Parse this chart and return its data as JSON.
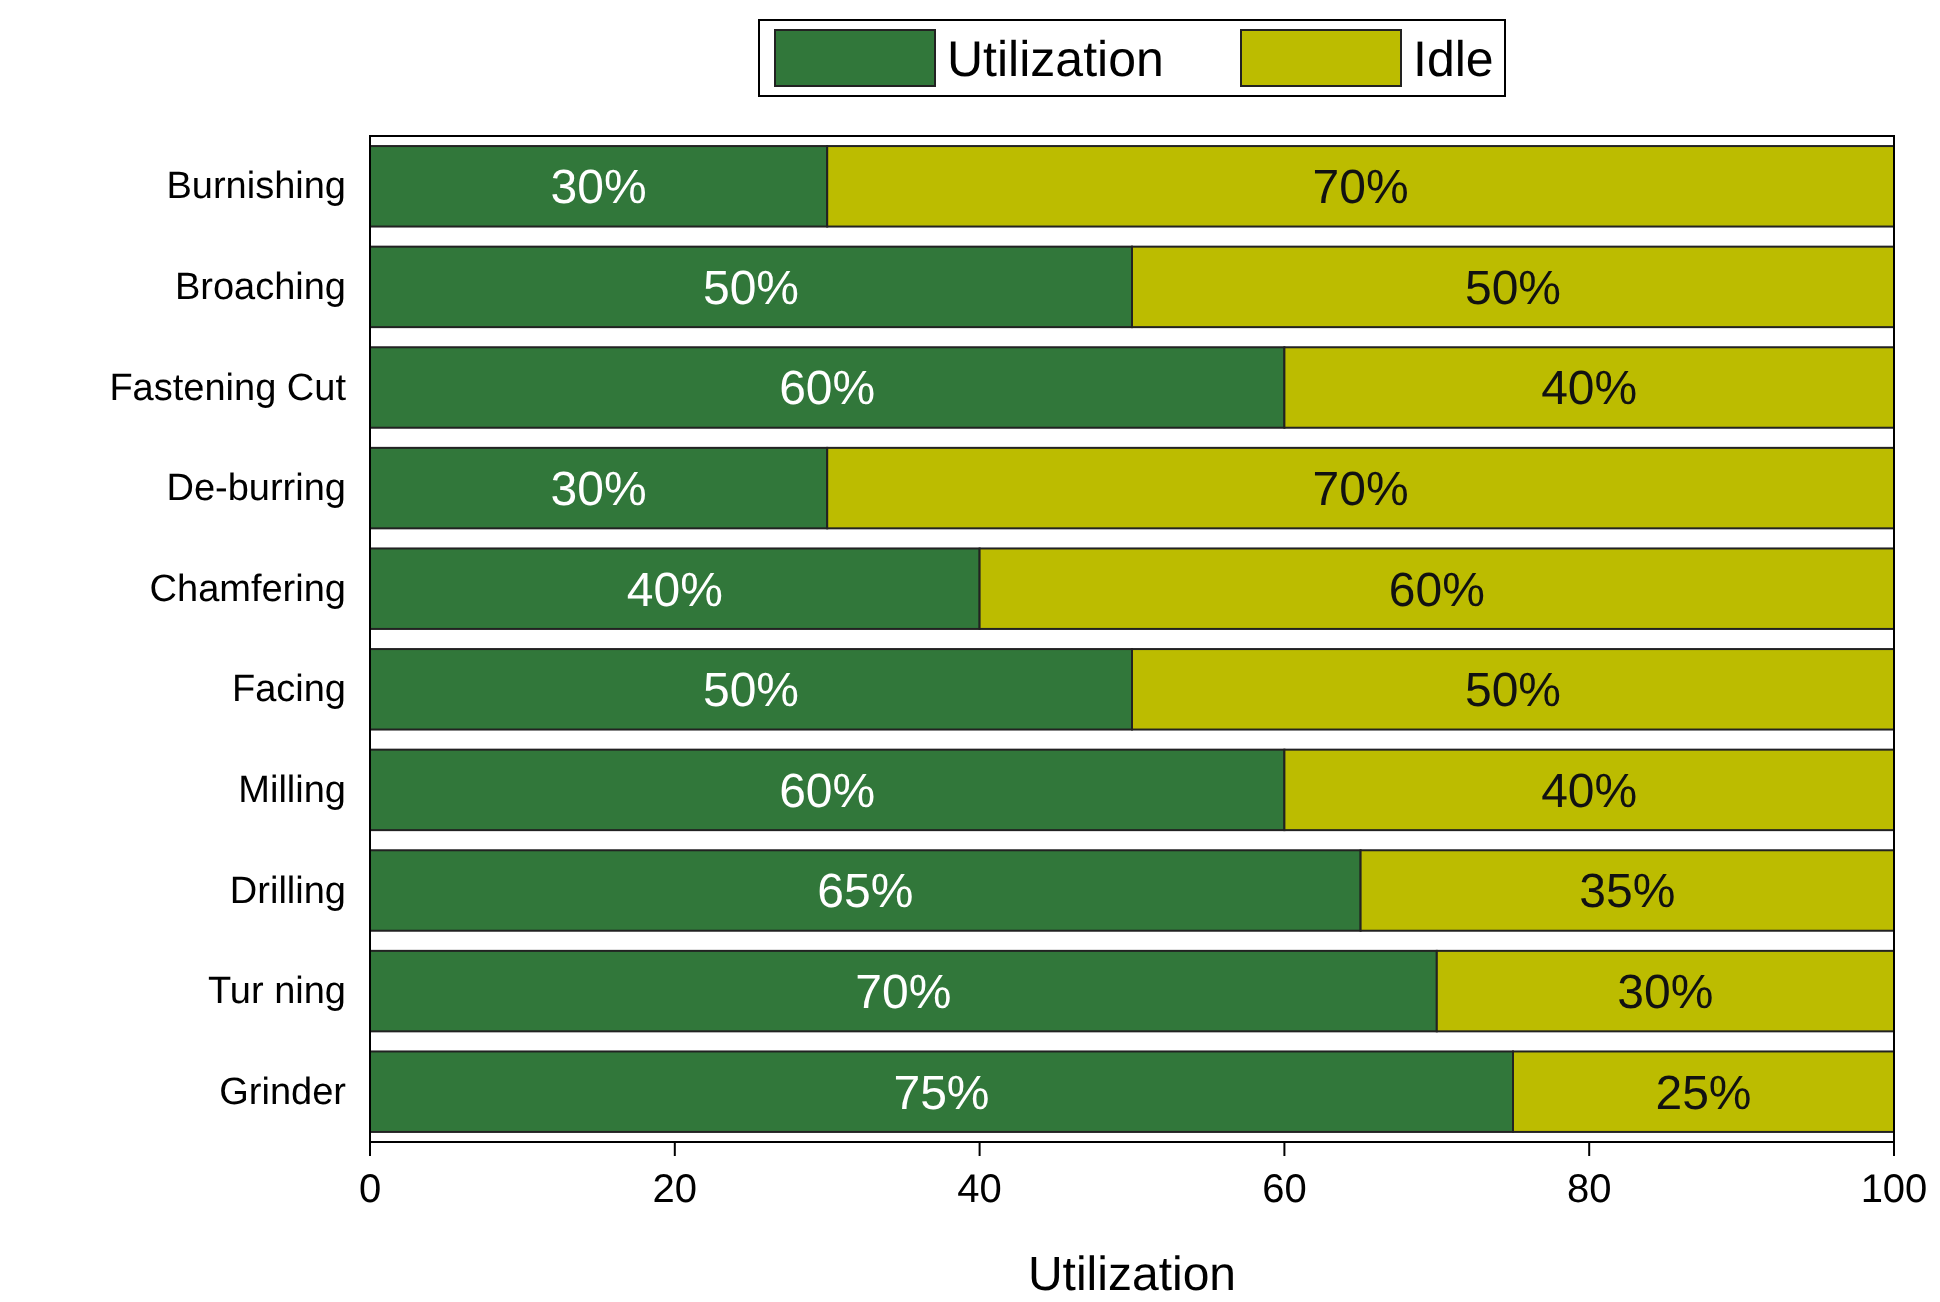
{
  "chart_data": {
    "type": "bar",
    "orientation": "horizontal",
    "stacked": true,
    "xlabel": "Utilization",
    "categories": [
      "Burnishing",
      "Broaching",
      "Fastening Cut",
      "De-burring",
      "Chamfering",
      "Facing",
      "Milling",
      "Drilling",
      "Tur ning",
      "Grinder"
    ],
    "series": [
      {
        "name": "Utilization",
        "color": "#31773a",
        "values": [
          30,
          50,
          60,
          30,
          40,
          50,
          60,
          65,
          70,
          75
        ],
        "value_labels": [
          "30%",
          "50%",
          "60%",
          "30%",
          "40%",
          "50%",
          "60%",
          "65%",
          "70%",
          "75%"
        ]
      },
      {
        "name": "Idle",
        "color": "#bcbc00",
        "values": [
          70,
          50,
          40,
          70,
          60,
          50,
          40,
          35,
          30,
          25
        ],
        "value_labels": [
          "70%",
          "50%",
          "40%",
          "70%",
          "60%",
          "50%",
          "40%",
          "35%",
          "30%",
          "25%"
        ]
      }
    ],
    "xlim": [
      0,
      100
    ],
    "xticks": [
      0,
      20,
      40,
      60,
      80,
      100
    ],
    "legend": "top"
  }
}
